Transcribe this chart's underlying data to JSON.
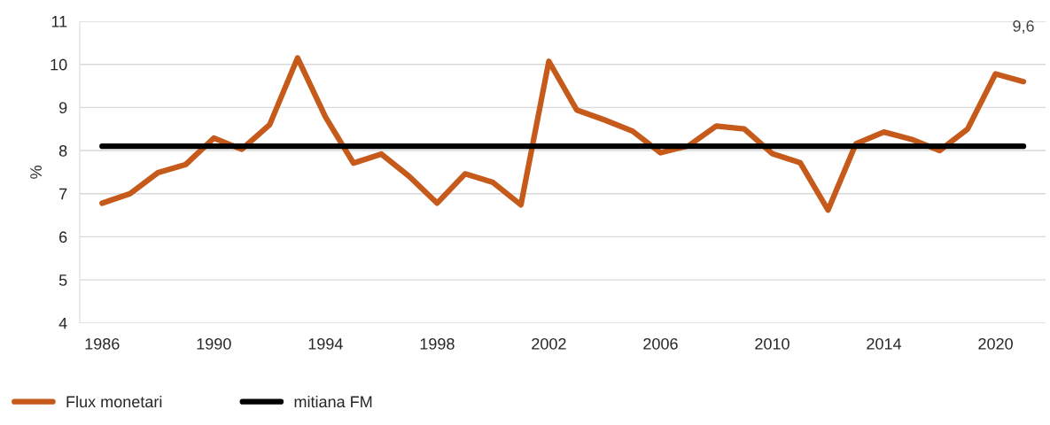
{
  "chart_data": {
    "type": "line",
    "ylabel": "%",
    "categories": [
      "1986",
      null,
      null,
      null,
      "1990",
      null,
      null,
      null,
      "1994",
      null,
      null,
      null,
      "1998",
      null,
      null,
      null,
      "2002",
      null,
      null,
      null,
      "2006",
      null,
      null,
      null,
      "2010",
      null,
      null,
      null,
      "2014",
      null,
      null,
      null,
      "2020",
      null
    ],
    "series": [
      {
        "name": "Flux monetari",
        "color": "#c55a1a",
        "values": [
          6.78,
          7.0,
          7.49,
          7.68,
          8.29,
          8.03,
          8.6,
          10.15,
          8.78,
          7.71,
          7.92,
          7.4,
          6.78,
          7.46,
          7.26,
          6.74,
          10.07,
          8.94,
          8.71,
          8.45,
          7.95,
          8.11,
          8.57,
          8.5,
          7.93,
          7.72,
          6.62,
          8.16,
          8.43,
          8.26,
          8.0,
          8.5,
          9.78,
          9.6
        ],
        "value_labels": [
          null,
          null,
          null,
          null,
          null,
          null,
          null,
          null,
          null,
          null,
          null,
          null,
          null,
          null,
          null,
          null,
          null,
          null,
          null,
          null,
          null,
          null,
          null,
          null,
          null,
          null,
          null,
          null,
          null,
          null,
          null,
          null,
          null,
          "9,6"
        ]
      },
      {
        "name": "mitiana FM",
        "color": "#000000",
        "values": [
          8.1,
          8.1,
          8.1,
          8.1,
          8.1,
          8.1,
          8.1,
          8.1,
          8.1,
          8.1,
          8.1,
          8.1,
          8.1,
          8.1,
          8.1,
          8.1,
          8.1,
          8.1,
          8.1,
          8.1,
          8.1,
          8.1,
          8.1,
          8.1,
          8.1,
          8.1,
          8.1,
          8.1,
          8.1,
          8.1,
          8.1,
          8.1,
          8.1,
          8.1
        ]
      }
    ],
    "ylim": [
      4,
      11
    ],
    "yticks": [
      4,
      5,
      6,
      7,
      8,
      9,
      10,
      11
    ],
    "grid": "y",
    "legend": "bottom left",
    "marker": "none",
    "line_style": "solid"
  }
}
